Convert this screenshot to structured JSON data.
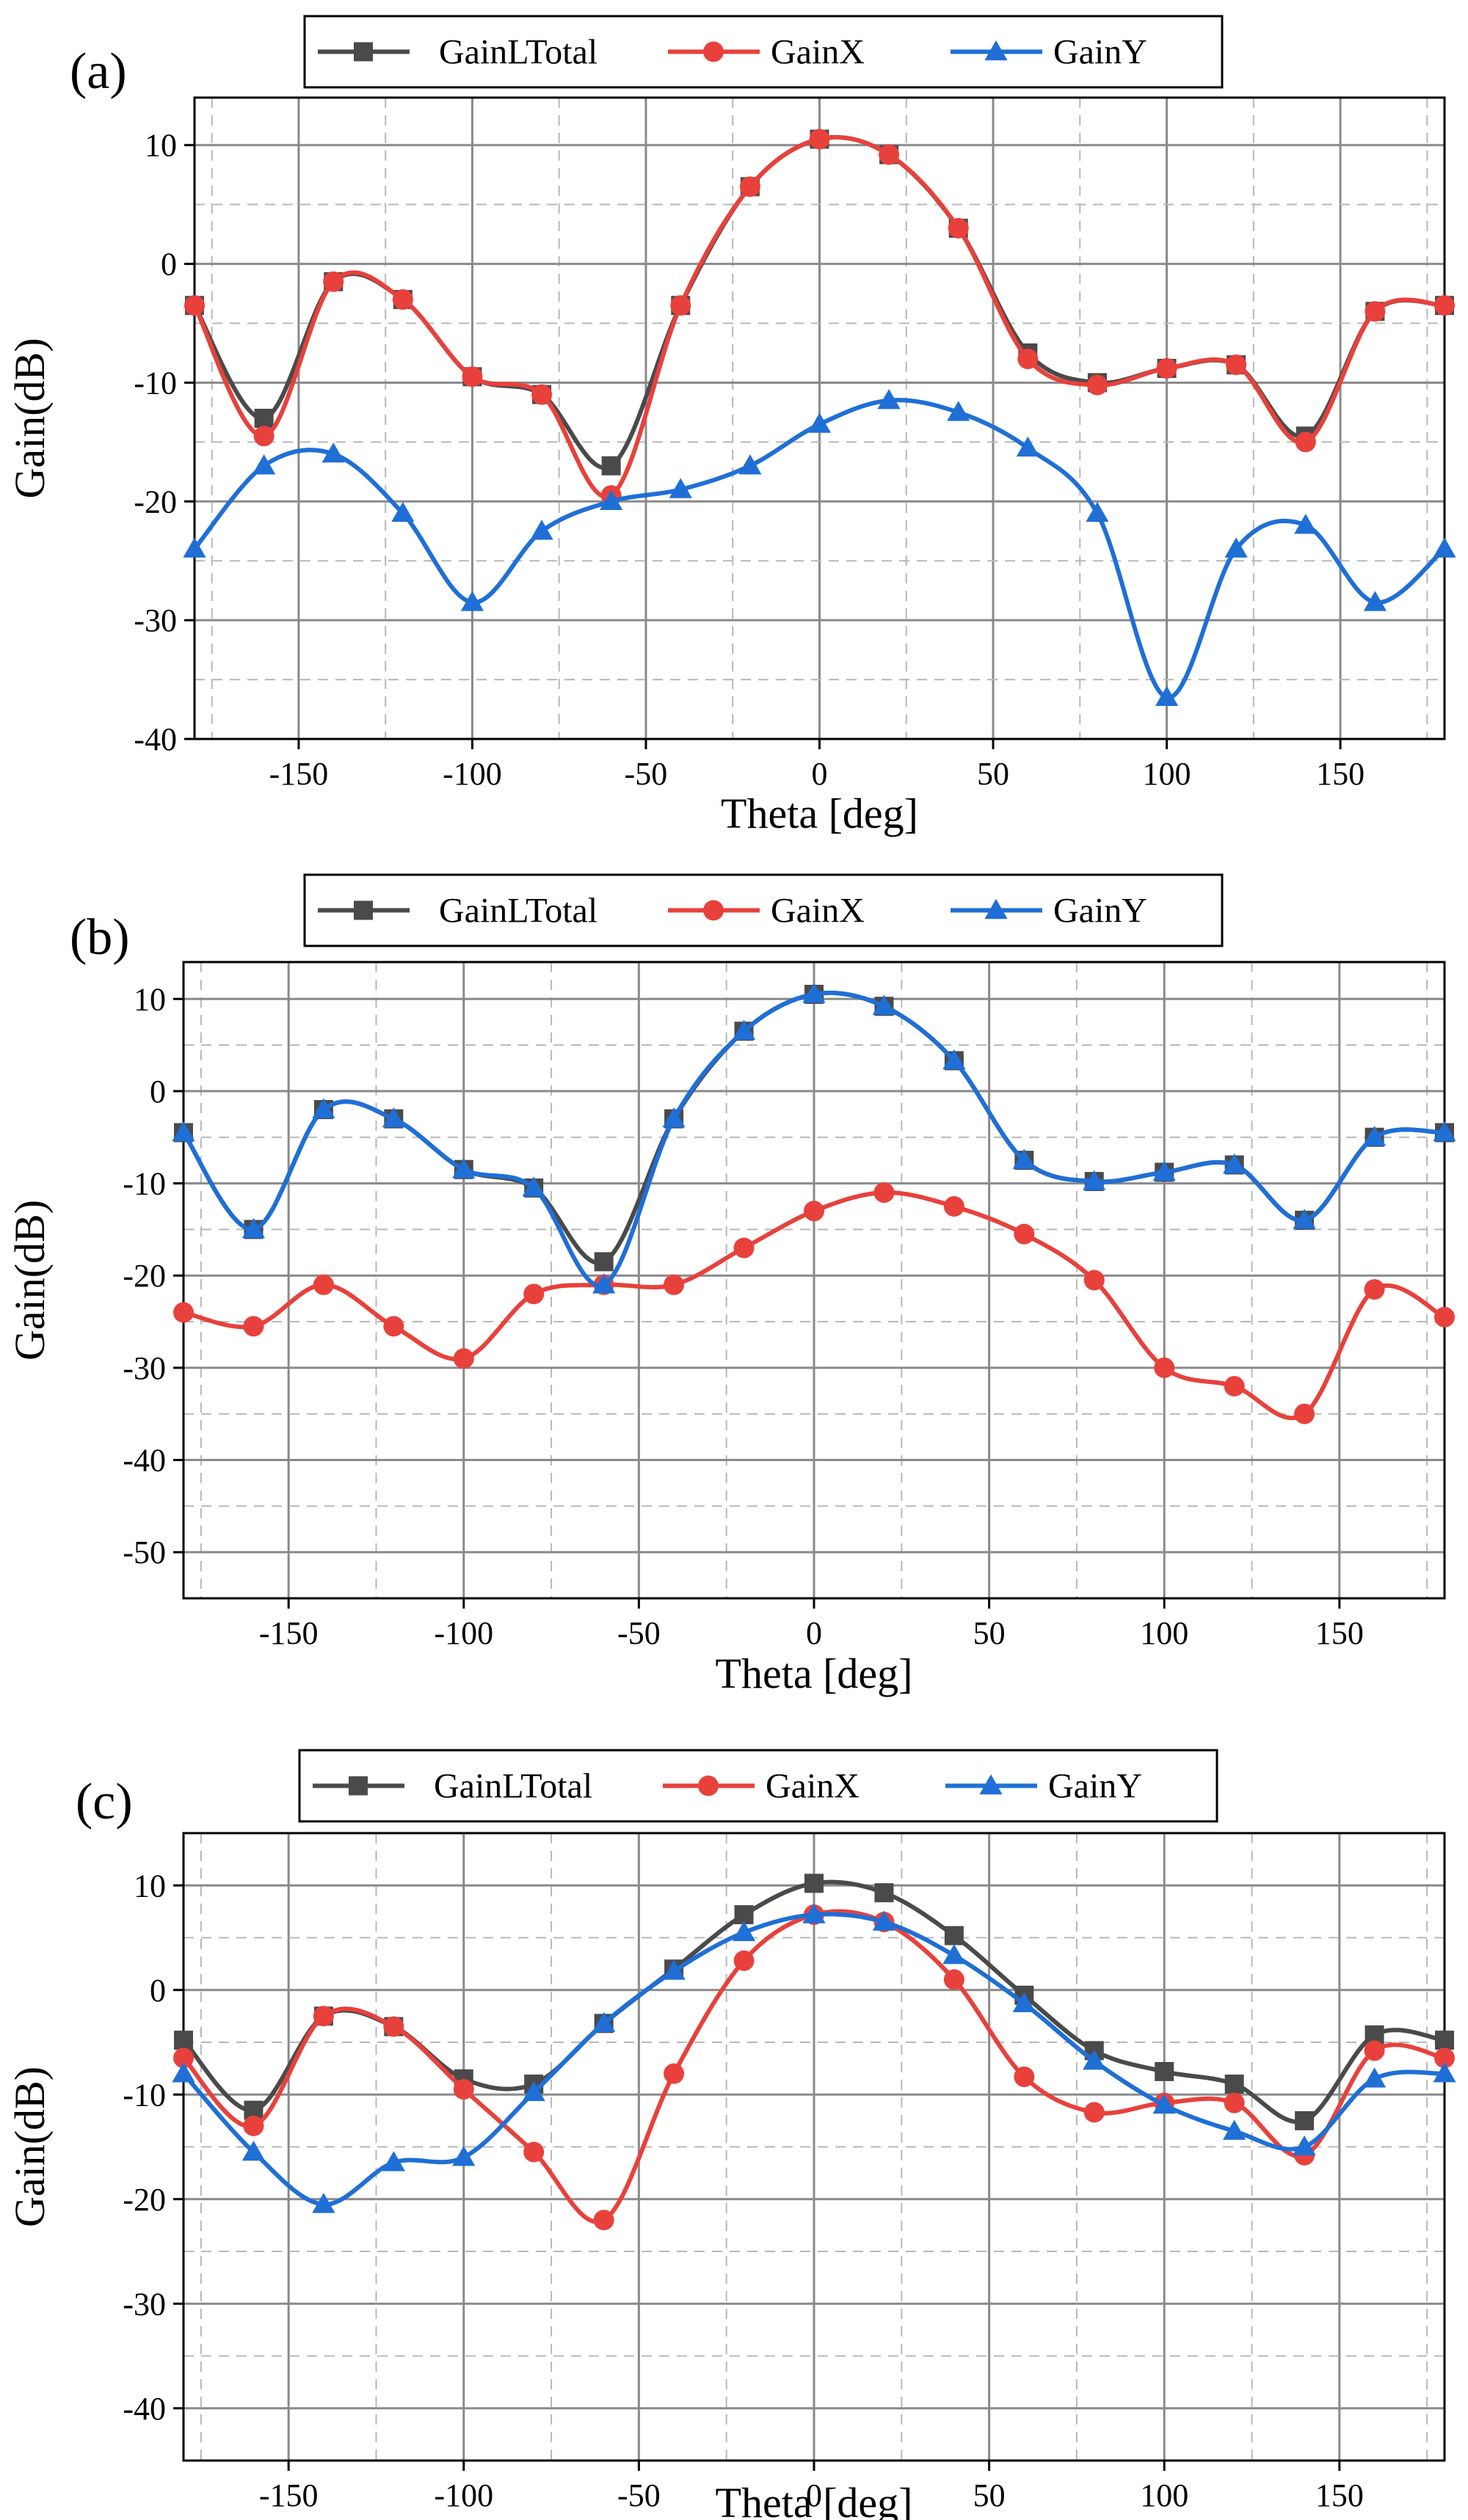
{
  "colors": {
    "total": "#4a4a4a",
    "x": "#e8413c",
    "y": "#1f6fd6"
  },
  "legend_labels": [
    "GainLTotal",
    "GainX",
    "GainY"
  ],
  "chart_data": [
    {
      "panel_label": "(a)",
      "type": "line",
      "xlabel": "Theta [deg]",
      "ylabel": "Gain(dB)",
      "xlim": [
        -180,
        180
      ],
      "ylim": [
        -40,
        14
      ],
      "xticks": [
        -150,
        -100,
        -50,
        0,
        50,
        100,
        150
      ],
      "yticks": [
        -40,
        -30,
        -20,
        -10,
        0,
        10
      ],
      "series": [
        {
          "name": "GainLTotal",
          "color": "#4a4a4a",
          "marker": "square",
          "x": [
            -180,
            -160,
            -140,
            -120,
            -100,
            -80,
            -60,
            -40,
            -20,
            0,
            20,
            40,
            60,
            80,
            100,
            120,
            140,
            160,
            180
          ],
          "y": [
            -3.5,
            -13,
            -1.5,
            -3,
            -9.5,
            -11,
            -17,
            -3.5,
            6.5,
            10.5,
            9.2,
            3,
            -7.5,
            -10,
            -8.8,
            -8.5,
            -14.5,
            -4,
            -3.5
          ]
        },
        {
          "name": "GainX",
          "color": "#e8413c",
          "marker": "circle",
          "x": [
            -180,
            -160,
            -140,
            -120,
            -100,
            -80,
            -60,
            -40,
            -20,
            0,
            20,
            40,
            60,
            80,
            100,
            120,
            140,
            160,
            180
          ],
          "y": [
            -3.5,
            -14.5,
            -1.5,
            -3,
            -9.5,
            -11,
            -19.5,
            -3.5,
            6.5,
            10.5,
            9.2,
            3,
            -8,
            -10.2,
            -8.8,
            -8.5,
            -15,
            -4,
            -3.5
          ]
        },
        {
          "name": "GainY",
          "color": "#1f6fd6",
          "marker": "triangle",
          "x": [
            -180,
            -160,
            -140,
            -120,
            -100,
            -80,
            -60,
            -40,
            -20,
            0,
            20,
            40,
            60,
            80,
            100,
            120,
            140,
            160,
            180
          ],
          "y": [
            -24,
            -17,
            -16,
            -21,
            -28.5,
            -22.5,
            -20,
            -19,
            -17,
            -13.5,
            -11.5,
            -12.5,
            -15.5,
            -21,
            -36.5,
            -24,
            -22,
            -28.5,
            -24
          ]
        }
      ]
    },
    {
      "panel_label": "(b)",
      "type": "line",
      "xlabel": "Theta [deg]",
      "ylabel": "Gain(dB)",
      "xlim": [
        -180,
        180
      ],
      "ylim": [
        -55,
        14
      ],
      "xticks": [
        -150,
        -100,
        -50,
        0,
        50,
        100,
        150
      ],
      "yticks": [
        -50,
        -40,
        -30,
        -20,
        -10,
        0,
        10
      ],
      "series": [
        {
          "name": "GainLTotal",
          "color": "#4a4a4a",
          "marker": "square",
          "x": [
            -180,
            -160,
            -140,
            -120,
            -100,
            -80,
            -60,
            -40,
            -20,
            0,
            20,
            40,
            60,
            80,
            100,
            120,
            140,
            160,
            180
          ],
          "y": [
            -4.5,
            -15,
            -2,
            -3,
            -8.5,
            -10.5,
            -18.5,
            -3,
            6.5,
            10.5,
            9.2,
            3.3,
            -7.5,
            -9.8,
            -8.8,
            -8,
            -14,
            -5,
            -4.5
          ]
        },
        {
          "name": "GainX",
          "color": "#e8413c",
          "marker": "circle",
          "x": [
            -180,
            -160,
            -140,
            -120,
            -100,
            -80,
            -60,
            -40,
            -20,
            0,
            20,
            40,
            60,
            80,
            100,
            120,
            140,
            160,
            180
          ],
          "y": [
            -24,
            -25.5,
            -21,
            -25.5,
            -29,
            -22,
            -21,
            -21,
            -17,
            -13,
            -11,
            -12.5,
            -15.5,
            -20.5,
            -30,
            -32,
            -35,
            -21.5,
            -24.5
          ]
        },
        {
          "name": "GainY",
          "color": "#1f6fd6",
          "marker": "triangle",
          "x": [
            -180,
            -160,
            -140,
            -120,
            -100,
            -80,
            -60,
            -40,
            -20,
            0,
            20,
            40,
            60,
            80,
            100,
            120,
            140,
            160,
            180
          ],
          "y": [
            -4.5,
            -15,
            -2,
            -3,
            -8.5,
            -10.5,
            -21,
            -3,
            6.5,
            10.5,
            9.2,
            3.3,
            -7.5,
            -9.8,
            -8.8,
            -8,
            -14,
            -5,
            -4.5
          ]
        }
      ]
    },
    {
      "panel_label": "(c)",
      "type": "line",
      "xlabel": "Theta [deg]",
      "ylabel": "Gain(dB)",
      "xlim": [
        -180,
        180
      ],
      "ylim": [
        -45,
        15
      ],
      "xticks": [
        -150,
        -100,
        -50,
        0,
        50,
        100,
        150
      ],
      "yticks": [
        -40,
        -30,
        -20,
        -10,
        0,
        10
      ],
      "series": [
        {
          "name": "GainLTotal",
          "color": "#4a4a4a",
          "marker": "square",
          "x": [
            -180,
            -160,
            -140,
            -120,
            -100,
            -80,
            -60,
            -40,
            -20,
            0,
            20,
            40,
            60,
            80,
            100,
            120,
            140,
            160,
            180
          ],
          "y": [
            -4.8,
            -11.5,
            -2.5,
            -3.5,
            -8.5,
            -9,
            -3.2,
            2,
            7.2,
            10.2,
            9.3,
            5.2,
            -0.5,
            -5.8,
            -7.8,
            -9,
            -12.5,
            -4.3,
            -4.8
          ]
        },
        {
          "name": "GainX",
          "color": "#e8413c",
          "marker": "circle",
          "x": [
            -180,
            -160,
            -140,
            -120,
            -100,
            -80,
            -60,
            -40,
            -20,
            0,
            20,
            40,
            60,
            80,
            100,
            120,
            140,
            160,
            180
          ],
          "y": [
            -6.5,
            -13,
            -2.5,
            -3.5,
            -9.5,
            -15.5,
            -22,
            -8,
            2.8,
            7.2,
            6.5,
            1,
            -8.3,
            -11.7,
            -10.8,
            -10.8,
            -15.8,
            -5.8,
            -6.5
          ]
        },
        {
          "name": "GainY",
          "color": "#1f6fd6",
          "marker": "triangle",
          "x": [
            -180,
            -160,
            -140,
            -120,
            -100,
            -80,
            -60,
            -40,
            -20,
            0,
            20,
            40,
            60,
            80,
            100,
            120,
            140,
            160,
            180
          ],
          "y": [
            -8,
            -15.5,
            -20.5,
            -16.5,
            -16,
            -9.8,
            -3.2,
            1.8,
            5.5,
            7.2,
            6.5,
            3.3,
            -1.3,
            -6.8,
            -11,
            -13.5,
            -15,
            -8.5,
            -8
          ]
        }
      ]
    }
  ]
}
